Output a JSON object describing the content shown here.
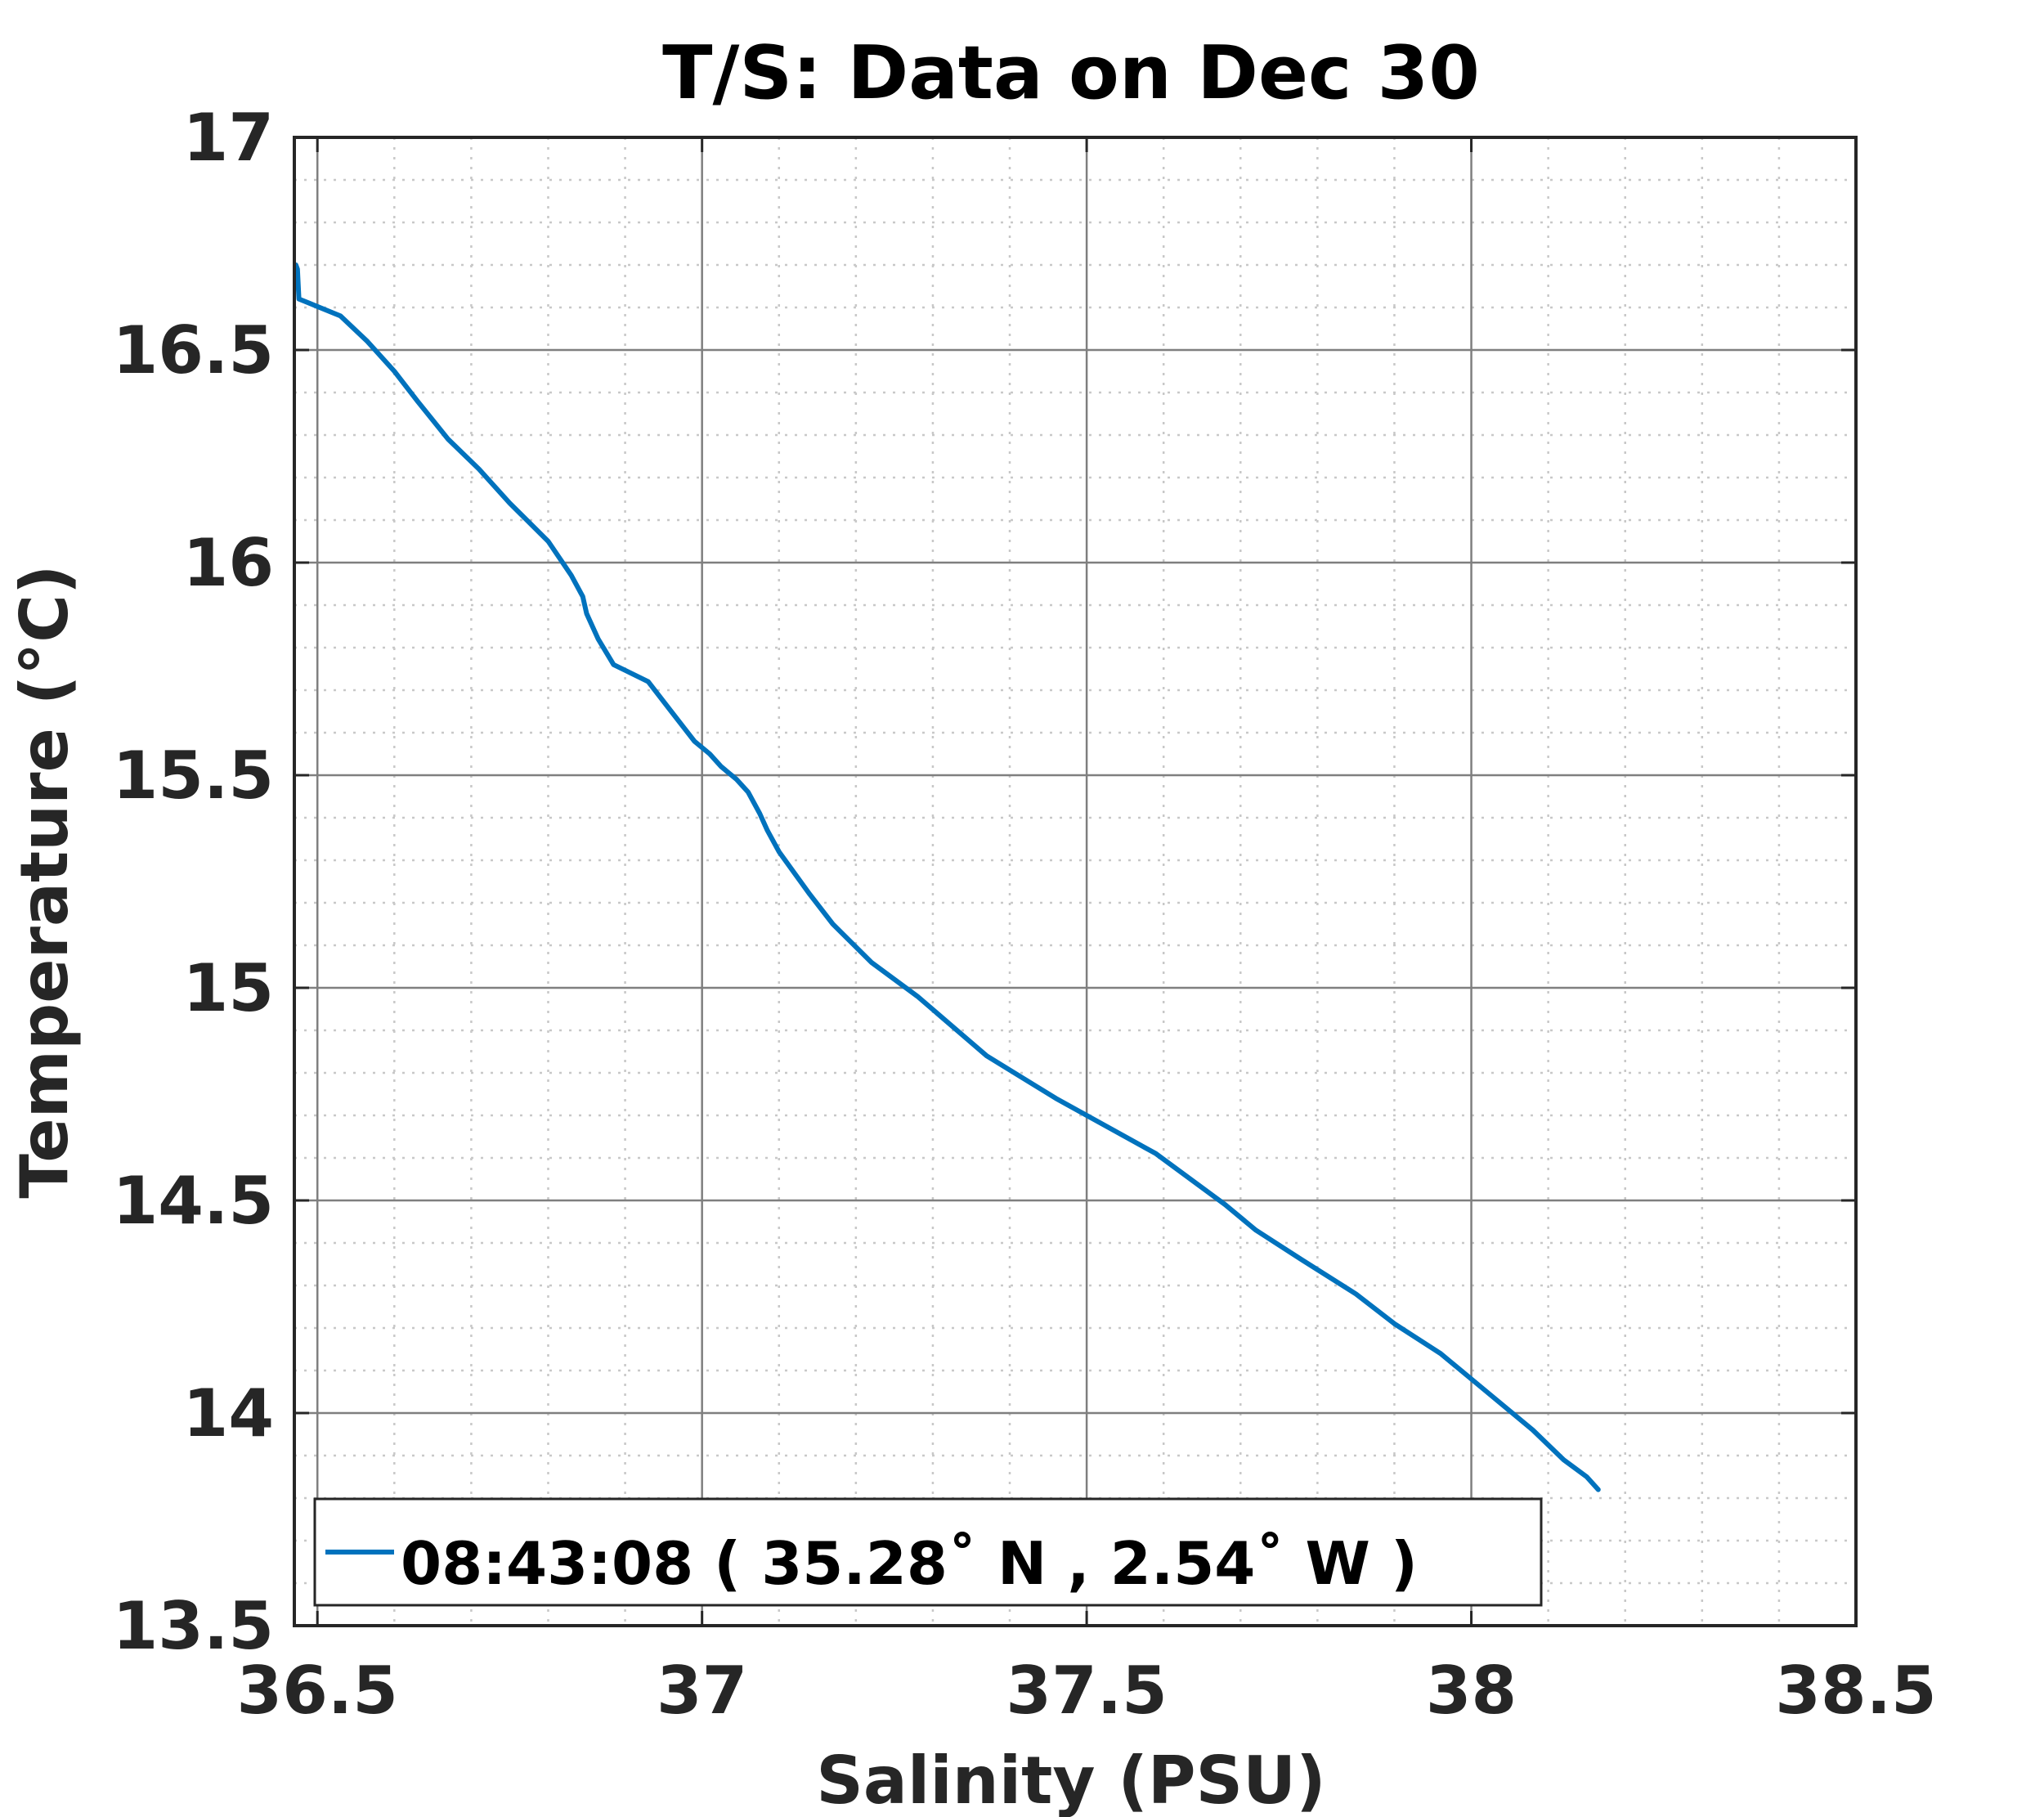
{
  "chart_data": {
    "type": "line",
    "title": "T/S: Data on Dec 30",
    "xlabel": "Salinity (PSU)",
    "ylabel": "Temperature (°C)",
    "xlim": [
      36.47,
      38.5
    ],
    "ylim": [
      13.5,
      17
    ],
    "x_ticks": [
      36.5,
      37,
      37.5,
      38,
      38.5
    ],
    "x_tick_labels": [
      "36.5",
      "37",
      "37.5",
      "38",
      "38.5"
    ],
    "y_ticks": [
      13.5,
      14,
      14.5,
      15,
      15.5,
      16,
      16.5,
      17
    ],
    "y_tick_labels": [
      "13.5",
      "14",
      "14.5",
      "15",
      "15.5",
      "16",
      "16.5",
      "17"
    ],
    "grid": true,
    "minor_grid": true,
    "legend_position": "bottom-left",
    "colors": {
      "series": "#0072BD",
      "major_grid": "#7f7f7f",
      "minor_grid": "#c8c8c8",
      "axes": "#262626"
    },
    "series": [
      {
        "name": "08:43:08 ( 35.28˚ N , 2.54˚ W )",
        "x": [
          36.472,
          36.474,
          36.476,
          36.53,
          36.565,
          36.6,
          36.63,
          36.67,
          36.71,
          36.75,
          36.8,
          36.83,
          36.845,
          36.85,
          36.865,
          36.885,
          36.93,
          36.96,
          36.99,
          37.01,
          37.025,
          37.045,
          37.06,
          37.075,
          37.085,
          37.1,
          37.14,
          37.17,
          37.22,
          37.28,
          37.37,
          37.46,
          37.59,
          37.68,
          37.72,
          37.78,
          37.85,
          37.9,
          37.96,
          38.02,
          38.08,
          38.12,
          38.15,
          38.165
        ],
        "y": [
          16.7,
          16.69,
          16.62,
          16.58,
          16.52,
          16.45,
          16.38,
          16.29,
          16.22,
          16.14,
          16.05,
          15.97,
          15.92,
          15.88,
          15.82,
          15.76,
          15.72,
          15.65,
          15.58,
          15.55,
          15.52,
          15.49,
          15.46,
          15.41,
          15.37,
          15.32,
          15.22,
          15.15,
          15.06,
          14.98,
          14.84,
          14.74,
          14.61,
          14.49,
          14.43,
          14.36,
          14.28,
          14.21,
          14.14,
          14.05,
          13.96,
          13.89,
          13.85,
          13.82
        ]
      }
    ]
  }
}
